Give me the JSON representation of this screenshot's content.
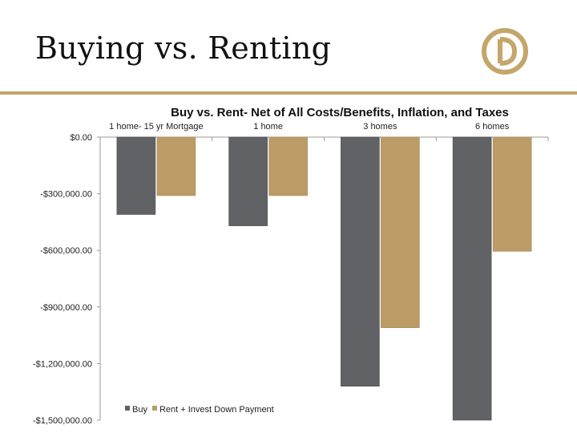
{
  "slide": {
    "title": "Buying vs. Renting"
  },
  "colors": {
    "buy": "#606266",
    "rent": "#bc9b66",
    "accent": "#c4a66a",
    "axis": "#9a9a9a"
  },
  "logo": {
    "icon": "circle-d-monogram-icon"
  },
  "chart_data": {
    "type": "bar",
    "title": "Buy  vs. Rent- Net of All Costs/Benefits, Inflation, and Taxes",
    "categories": [
      "1 home- 15 yr Mortgage",
      "1 home",
      "3 homes",
      "6 homes"
    ],
    "series": [
      {
        "name": "Buy",
        "values": [
          -410000,
          -470000,
          -1320000,
          -1500000
        ]
      },
      {
        "name": "Rent + Invest Down Payment",
        "values": [
          -310000,
          -310000,
          -1010000,
          -605000
        ]
      }
    ],
    "ylim": [
      -1500000,
      0
    ],
    "yticks": [
      0,
      -300000,
      -600000,
      -900000,
      -1200000,
      -1500000
    ],
    "ytick_labels": [
      "$0.00",
      "-$300,000.00",
      "-$600,000.00",
      "-$900,000.00",
      "-$1,200,000.00",
      "-$1,500,000.00"
    ],
    "category_axis_position": "top",
    "legend": {
      "position": "bottom-left",
      "entries": [
        "Buy",
        "Rent + Invest Down Payment"
      ]
    },
    "xlabel": "",
    "ylabel": "",
    "grid": false
  }
}
